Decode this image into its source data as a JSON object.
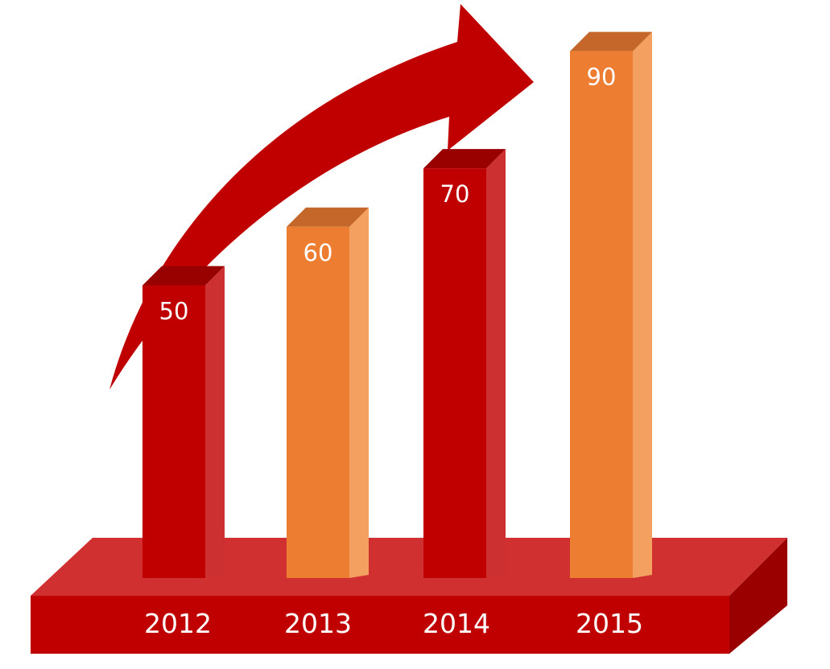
{
  "chart_data": {
    "type": "bar",
    "categories": [
      "2012",
      "2013",
      "2014",
      "2015"
    ],
    "values": [
      50,
      60,
      70,
      90
    ],
    "ylim": [
      0,
      100
    ],
    "grid": false,
    "legend": "none"
  },
  "colors": {
    "bar_red_front": "#c00000",
    "bar_red_side": "#cc3030",
    "bar_red_top": "#990000",
    "bar_orange_front": "#ed7d31",
    "bar_orange_side": "#f4a060",
    "bar_orange_top": "#c5672a",
    "base_top": "#d03030",
    "base_front": "#c00000",
    "base_side": "#9a0000",
    "arrow": "#c00000",
    "text": "#ffffff"
  }
}
